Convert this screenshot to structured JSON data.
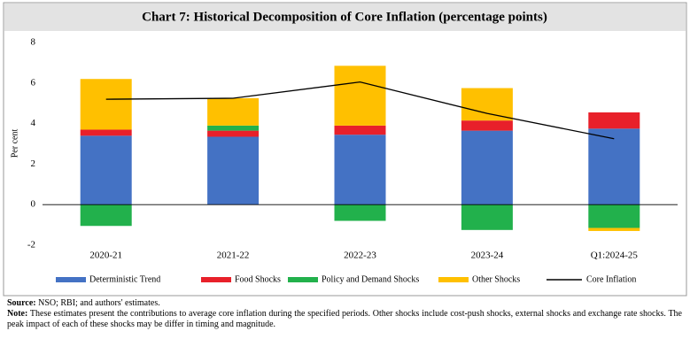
{
  "chart_data": {
    "type": "bar",
    "title": "Chart 7: Historical Decomposition of Core Inflation (percentage points)",
    "ylabel": "Per cent",
    "categories": [
      "2020-21",
      "2021-22",
      "2022-23",
      "2023-24",
      "Q1:2024-25"
    ],
    "series": [
      {
        "name": "Deterministic Trend",
        "color": "#4472c4",
        "values": [
          3.4,
          3.35,
          3.45,
          3.65,
          3.75
        ]
      },
      {
        "name": "Food Shocks",
        "color": "#e8202a",
        "values": [
          0.3,
          0.3,
          0.45,
          0.5,
          0.8
        ]
      },
      {
        "name": "Policy and Demand Shocks",
        "color": "#22b14c",
        "values": [
          -1.05,
          0.25,
          -0.8,
          -1.25,
          -1.15
        ]
      },
      {
        "name": "Other Shocks",
        "color": "#ffc000",
        "values": [
          2.5,
          1.35,
          2.95,
          1.6,
          -0.15
        ]
      },
      {
        "name": "Core Inflation",
        "color": "#000000",
        "type": "line",
        "values": [
          5.2,
          5.25,
          6.05,
          4.5,
          3.25
        ]
      }
    ],
    "stacked": true,
    "ylim": [
      -2,
      8
    ],
    "yticks": [
      -2,
      0,
      2,
      4,
      6,
      8
    ],
    "grid": false
  },
  "source_label": "Source:",
  "source": "NSO; RBI; and authors' estimates.",
  "note_label": "Note:",
  "note": "These estimates present the contributions to average core inflation during the specified periods. Other shocks include cost-push shocks, external shocks and exchange rate shocks. The peak impact of each of these shocks may be differ in timing and magnitude."
}
